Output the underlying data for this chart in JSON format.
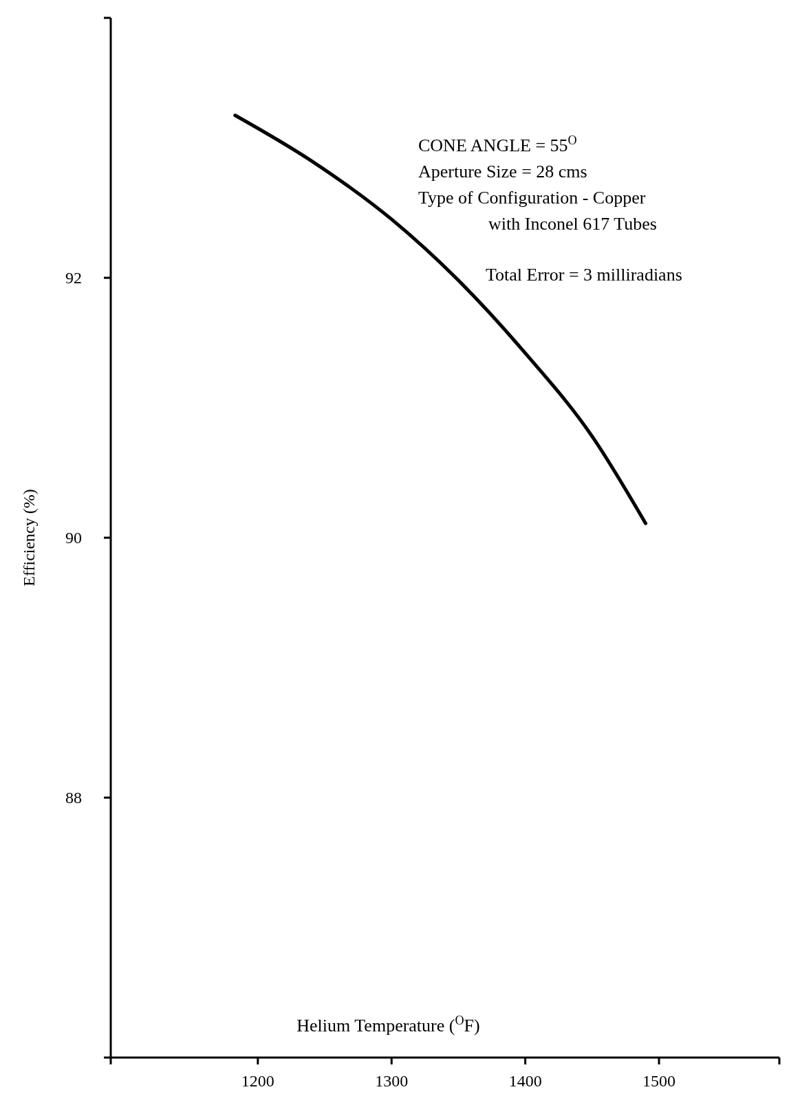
{
  "chart_data": {
    "type": "line",
    "xlabel": "Helium Temperature ($^{O}$F)",
    "ylabel": "Efficiency (%)",
    "x": [
      1183,
      1240,
      1300,
      1350,
      1400,
      1450,
      1490
    ],
    "values": [
      93.25,
      92.9,
      92.45,
      91.98,
      91.42,
      90.78,
      90.11
    ],
    "color": "#000000",
    "xlim": [
      1090,
      1590
    ],
    "xticks": [
      {
        "value": 1090,
        "label": null
      },
      1200,
      1300,
      1400,
      1500,
      {
        "value": 1590,
        "label": null
      }
    ],
    "ylim": [
      86,
      94
    ],
    "yticks": [
      {
        "value": 86,
        "label": null
      },
      88,
      90,
      92,
      {
        "value": 94,
        "label": null
      }
    ],
    "grid": false,
    "annotations": [
      "CONE ANGLE = 55$^{O}$",
      "Aperture Size = 28 cms",
      "Type of Configuration - Copper",
      "with Inconel 617 Tubes",
      "Total Error = 3 milliradians"
    ]
  }
}
